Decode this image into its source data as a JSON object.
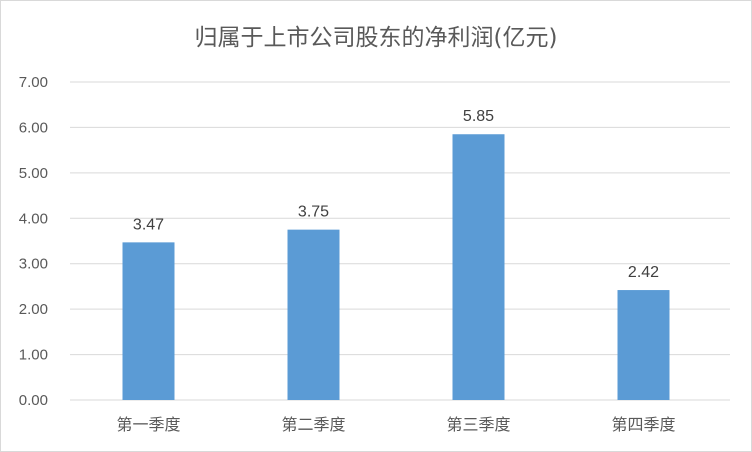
{
  "chart_data": {
    "type": "bar",
    "title": "归属于上市公司股东的净利润(亿元)",
    "categories": [
      "第一季度",
      "第二季度",
      "第三季度",
      "第四季度"
    ],
    "values": [
      3.47,
      3.75,
      5.85,
      2.42
    ],
    "value_labels": [
      "3.47",
      "3.75",
      "5.85",
      "2.42"
    ],
    "y_ticks": [
      "0.00",
      "1.00",
      "2.00",
      "3.00",
      "4.00",
      "5.00",
      "6.00",
      "7.00"
    ],
    "ylim": [
      0,
      7
    ],
    "grid": true,
    "legend": "none",
    "bar_color": "#5B9BD5",
    "grid_color": "#d9d9d9"
  }
}
